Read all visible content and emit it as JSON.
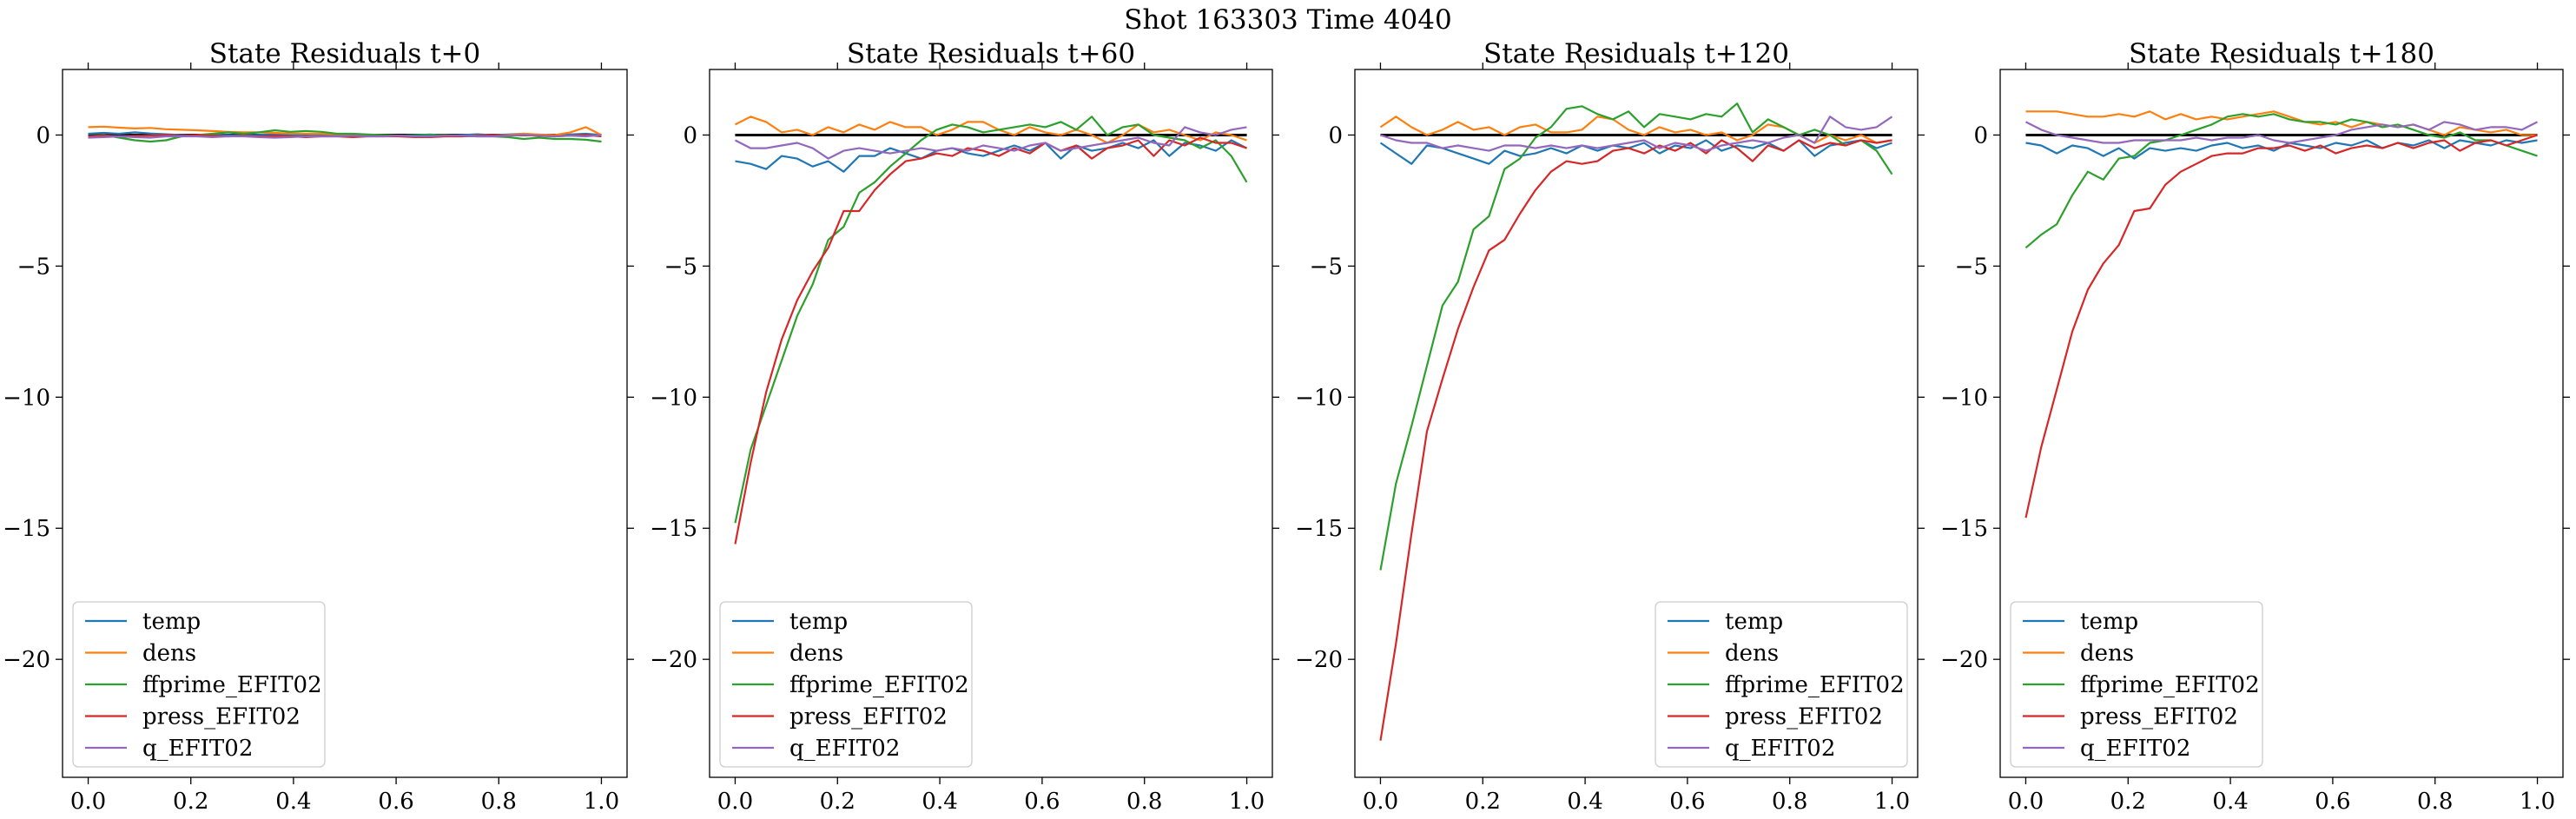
{
  "figure": {
    "suptitle": "Shot 163303   Time 4040"
  },
  "chart_data": [
    {
      "type": "line",
      "title": "State Residuals t+0",
      "xlim": [
        -0.05,
        1.05
      ],
      "ylim": [
        -24.5,
        2.5
      ],
      "xticks": [
        "0.0",
        "0.2",
        "0.4",
        "0.6",
        "0.8",
        "1.0"
      ],
      "yticks": [
        "0",
        "−5",
        "−10",
        "−15",
        "−20"
      ],
      "legend_position": "lower-left",
      "colors": {
        "temp": "#1f77b4",
        "dens": "#ff7f0e",
        "ffprime_EFIT02": "#2ca02c",
        "press_EFIT02": "#d62728",
        "q_EFIT02": "#9467bd",
        "zero_line": "#000000"
      },
      "zero_line": 0,
      "x": [
        0.0,
        0.0303,
        0.0606,
        0.0909,
        0.1212,
        0.1515,
        0.1818,
        0.2121,
        0.2424,
        0.2727,
        0.303,
        0.3333,
        0.3636,
        0.3939,
        0.4242,
        0.4545,
        0.4848,
        0.5152,
        0.5455,
        0.5758,
        0.6061,
        0.6364,
        0.6667,
        0.697,
        0.7273,
        0.7576,
        0.7879,
        0.8182,
        0.8485,
        0.8788,
        0.9091,
        0.9394,
        0.9697,
        1.0
      ],
      "series": [
        {
          "name": "temp",
          "values": [
            0.05,
            0.08,
            0.05,
            0.1,
            0.06,
            0.03,
            0.0,
            -0.02,
            0.02,
            0.0,
            -0.02,
            0.01,
            0.03,
            0.0,
            -0.03,
            0.0,
            0.02,
            0.03,
            0.0,
            -0.02,
            -0.03,
            0.0,
            0.02,
            -0.02,
            0.0,
            0.03,
            0.0,
            0.02,
            0.05,
            0.0,
            -0.02,
            0.02,
            0.05,
            0.0
          ]
        },
        {
          "name": "dens",
          "values": [
            0.3,
            0.32,
            0.28,
            0.25,
            0.27,
            0.22,
            0.2,
            0.18,
            0.15,
            0.12,
            0.1,
            0.1,
            0.08,
            0.06,
            0.05,
            0.05,
            0.03,
            0.02,
            0.0,
            -0.02,
            -0.05,
            -0.05,
            -0.03,
            -0.05,
            -0.05,
            -0.02,
            -0.02,
            0.0,
            0.05,
            0.02,
            0.0,
            0.1,
            0.3,
            0.0
          ]
        },
        {
          "name": "ffprime_EFIT02",
          "values": [
            -0.05,
            0.0,
            -0.1,
            -0.2,
            -0.25,
            -0.2,
            -0.05,
            0.0,
            0.05,
            0.1,
            0.05,
            0.1,
            0.18,
            0.12,
            0.15,
            0.12,
            0.05,
            0.05,
            0.02,
            0.0,
            -0.02,
            -0.02,
            0.0,
            0.0,
            -0.03,
            -0.05,
            -0.05,
            -0.08,
            -0.15,
            -0.1,
            -0.15,
            -0.15,
            -0.18,
            -0.25
          ]
        },
        {
          "name": "press_EFIT02",
          "values": [
            -0.05,
            -0.02,
            -0.05,
            -0.03,
            -0.02,
            0.0,
            -0.03,
            0.0,
            -0.02,
            -0.05,
            -0.03,
            -0.05,
            -0.03,
            -0.05,
            -0.08,
            -0.05,
            -0.05,
            -0.08,
            -0.05,
            -0.05,
            -0.05,
            -0.08,
            -0.08,
            -0.05,
            -0.05,
            -0.03,
            0.0,
            -0.02,
            0.0,
            -0.03,
            -0.05,
            -0.02,
            0.0,
            -0.05
          ]
        },
        {
          "name": "q_EFIT02",
          "values": [
            -0.1,
            -0.08,
            -0.05,
            -0.08,
            -0.1,
            -0.05,
            -0.05,
            -0.05,
            -0.08,
            -0.05,
            -0.05,
            -0.08,
            -0.1,
            -0.08,
            -0.05,
            -0.05,
            -0.05,
            -0.02,
            -0.05,
            -0.05,
            -0.02,
            -0.05,
            -0.05,
            -0.02,
            -0.02,
            -0.05,
            -0.05,
            -0.02,
            0.0,
            -0.02,
            -0.05,
            -0.02,
            -0.05,
            0.0
          ]
        }
      ]
    },
    {
      "type": "line",
      "title": "State Residuals t+60",
      "xlim": [
        -0.05,
        1.05
      ],
      "ylim": [
        -24.5,
        2.5
      ],
      "xticks": [
        "0.0",
        "0.2",
        "0.4",
        "0.6",
        "0.8",
        "1.0"
      ],
      "yticks": [
        "0",
        "−5",
        "−10",
        "−15",
        "−20"
      ],
      "legend_position": "lower-left",
      "colors": {
        "temp": "#1f77b4",
        "dens": "#ff7f0e",
        "ffprime_EFIT02": "#2ca02c",
        "press_EFIT02": "#d62728",
        "q_EFIT02": "#9467bd",
        "zero_line": "#000000"
      },
      "zero_line": 0,
      "x": [
        0.0,
        0.0303,
        0.0606,
        0.0909,
        0.1212,
        0.1515,
        0.1818,
        0.2121,
        0.2424,
        0.2727,
        0.303,
        0.3333,
        0.3636,
        0.3939,
        0.4242,
        0.4545,
        0.4848,
        0.5152,
        0.5455,
        0.5758,
        0.6061,
        0.6364,
        0.6667,
        0.697,
        0.7273,
        0.7576,
        0.7879,
        0.8182,
        0.8485,
        0.8788,
        0.9091,
        0.9394,
        0.9697,
        1.0
      ],
      "series": [
        {
          "name": "temp",
          "values": [
            -1.0,
            -1.1,
            -1.3,
            -0.8,
            -0.9,
            -1.2,
            -1.0,
            -1.4,
            -0.8,
            -0.8,
            -0.5,
            -0.7,
            -0.9,
            -0.6,
            -0.5,
            -0.7,
            -0.8,
            -0.6,
            -0.4,
            -0.6,
            -0.3,
            -0.9,
            -0.4,
            -0.6,
            -0.5,
            -0.3,
            -0.5,
            -0.2,
            -0.8,
            -0.3,
            -0.4,
            -0.6,
            -0.2,
            -0.5
          ]
        },
        {
          "name": "dens",
          "values": [
            0.4,
            0.7,
            0.5,
            0.1,
            0.2,
            0.0,
            0.3,
            0.1,
            0.4,
            0.2,
            0.5,
            0.3,
            0.3,
            0.0,
            0.2,
            0.5,
            0.5,
            0.2,
            0.0,
            0.3,
            0.1,
            0.0,
            0.2,
            0.0,
            -0.3,
            0.0,
            0.4,
            0.1,
            0.2,
            0.0,
            -0.2,
            0.1,
            0.0,
            -0.2
          ]
        },
        {
          "name": "ffprime_EFIT02",
          "values": [
            -14.8,
            -12.0,
            -10.3,
            -8.6,
            -6.9,
            -5.7,
            -4.0,
            -3.5,
            -2.2,
            -1.8,
            -1.2,
            -0.7,
            -0.2,
            0.2,
            0.4,
            0.3,
            0.1,
            0.2,
            0.3,
            0.4,
            0.3,
            0.5,
            0.2,
            0.7,
            0.0,
            0.3,
            0.4,
            0.0,
            -0.1,
            -0.2,
            -0.5,
            -0.2,
            -0.8,
            -1.8
          ]
        },
        {
          "name": "press_EFIT02",
          "values": [
            -15.6,
            -12.5,
            -9.8,
            -7.8,
            -6.3,
            -5.2,
            -4.3,
            -2.9,
            -2.9,
            -2.1,
            -1.5,
            -1.0,
            -0.9,
            -0.7,
            -0.8,
            -0.5,
            -0.6,
            -0.8,
            -0.5,
            -0.7,
            -0.3,
            -0.6,
            -0.4,
            -0.9,
            -0.5,
            -0.4,
            -0.2,
            -0.8,
            -0.2,
            -0.4,
            -0.1,
            -0.3,
            -0.3,
            -0.5
          ]
        },
        {
          "name": "q_EFIT02",
          "values": [
            -0.2,
            -0.5,
            -0.5,
            -0.4,
            -0.3,
            -0.5,
            -0.9,
            -0.6,
            -0.5,
            -0.6,
            -0.7,
            -0.6,
            -0.5,
            -0.6,
            -0.5,
            -0.6,
            -0.4,
            -0.5,
            -0.6,
            -0.4,
            -0.3,
            -0.6,
            -0.5,
            -0.4,
            -0.3,
            -0.2,
            -0.1,
            -0.3,
            -0.4,
            0.3,
            0.1,
            0.0,
            0.2,
            0.3
          ]
        }
      ]
    },
    {
      "type": "line",
      "title": "State Residuals t+120",
      "xlim": [
        -0.05,
        1.05
      ],
      "ylim": [
        -24.5,
        2.5
      ],
      "xticks": [
        "0.0",
        "0.2",
        "0.4",
        "0.6",
        "0.8",
        "1.0"
      ],
      "yticks": [
        "0",
        "−5",
        "−10",
        "−15",
        "−20"
      ],
      "legend_position": "lower-right",
      "colors": {
        "temp": "#1f77b4",
        "dens": "#ff7f0e",
        "ffprime_EFIT02": "#2ca02c",
        "press_EFIT02": "#d62728",
        "q_EFIT02": "#9467bd",
        "zero_line": "#000000"
      },
      "zero_line": 0,
      "x": [
        0.0,
        0.0303,
        0.0606,
        0.0909,
        0.1212,
        0.1515,
        0.1818,
        0.2121,
        0.2424,
        0.2727,
        0.303,
        0.3333,
        0.3636,
        0.3939,
        0.4242,
        0.4545,
        0.4848,
        0.5152,
        0.5455,
        0.5758,
        0.6061,
        0.6364,
        0.6667,
        0.697,
        0.7273,
        0.7576,
        0.7879,
        0.8182,
        0.8485,
        0.8788,
        0.9091,
        0.9394,
        0.9697,
        1.0
      ],
      "series": [
        {
          "name": "temp",
          "values": [
            -0.3,
            -0.7,
            -1.1,
            -0.4,
            -0.5,
            -0.7,
            -0.9,
            -1.1,
            -0.6,
            -0.8,
            -0.7,
            -0.5,
            -0.7,
            -0.4,
            -0.6,
            -0.4,
            -0.5,
            -0.3,
            -0.7,
            -0.4,
            -0.5,
            -0.2,
            -0.6,
            -0.4,
            -0.5,
            -0.3,
            -0.6,
            -0.2,
            -0.8,
            -0.4,
            -0.3,
            -0.2,
            -0.5,
            -0.3
          ]
        },
        {
          "name": "dens",
          "values": [
            0.3,
            0.7,
            0.3,
            0.0,
            0.2,
            0.5,
            0.2,
            0.3,
            0.0,
            0.3,
            0.4,
            0.1,
            0.1,
            0.2,
            0.7,
            0.6,
            0.2,
            0.0,
            0.3,
            0.1,
            0.2,
            0.0,
            0.1,
            -0.2,
            0.0,
            0.4,
            0.3,
            0.0,
            -0.3,
            0.0,
            -0.2,
            0.0,
            -0.3,
            -0.2
          ]
        },
        {
          "name": "ffprime_EFIT02",
          "values": [
            -16.6,
            -13.3,
            -11.1,
            -8.8,
            -6.5,
            -5.6,
            -3.6,
            -3.1,
            -1.3,
            -0.9,
            -0.1,
            0.3,
            1.0,
            1.1,
            0.8,
            0.6,
            0.9,
            0.3,
            0.8,
            0.7,
            0.6,
            0.8,
            0.7,
            1.2,
            0.1,
            0.6,
            0.3,
            0.0,
            0.2,
            0.0,
            -0.4,
            -0.2,
            -0.6,
            -1.5
          ]
        },
        {
          "name": "press_EFIT02",
          "values": [
            -23.1,
            -19.4,
            -15.2,
            -11.3,
            -9.3,
            -7.4,
            -5.8,
            -4.4,
            -4.0,
            -3.0,
            -2.1,
            -1.4,
            -1.0,
            -1.1,
            -1.0,
            -0.6,
            -0.5,
            -0.7,
            -0.4,
            -0.6,
            -0.3,
            -0.7,
            -0.2,
            -0.5,
            -1.0,
            -0.4,
            -0.6,
            -0.2,
            -0.5,
            -0.3,
            -0.4,
            -0.2,
            -0.3,
            -0.2
          ]
        },
        {
          "name": "q_EFIT02",
          "values": [
            0.0,
            -0.2,
            -0.3,
            -0.3,
            -0.5,
            -0.4,
            -0.5,
            -0.6,
            -0.4,
            -0.4,
            -0.5,
            -0.4,
            -0.5,
            -0.4,
            -0.5,
            -0.4,
            -0.3,
            -0.2,
            -0.5,
            -0.3,
            -0.4,
            -0.6,
            -0.4,
            -0.3,
            -0.2,
            -0.3,
            -0.1,
            0.0,
            -0.3,
            0.7,
            0.3,
            0.2,
            0.3,
            0.7
          ]
        }
      ]
    },
    {
      "type": "line",
      "title": "State Residuals t+180",
      "xlim": [
        -0.05,
        1.05
      ],
      "ylim": [
        -24.5,
        2.5
      ],
      "xticks": [
        "0.0",
        "0.2",
        "0.4",
        "0.6",
        "0.8",
        "1.0"
      ],
      "yticks": [
        "0",
        "−5",
        "−10",
        "−15",
        "−20"
      ],
      "legend_position": "lower-left",
      "colors": {
        "temp": "#1f77b4",
        "dens": "#ff7f0e",
        "ffprime_EFIT02": "#2ca02c",
        "press_EFIT02": "#d62728",
        "q_EFIT02": "#9467bd",
        "zero_line": "#000000"
      },
      "zero_line": 0,
      "x": [
        0.0,
        0.0303,
        0.0606,
        0.0909,
        0.1212,
        0.1515,
        0.1818,
        0.2121,
        0.2424,
        0.2727,
        0.303,
        0.3333,
        0.3636,
        0.3939,
        0.4242,
        0.4545,
        0.4848,
        0.5152,
        0.5455,
        0.5758,
        0.6061,
        0.6364,
        0.6667,
        0.697,
        0.7273,
        0.7576,
        0.7879,
        0.8182,
        0.8485,
        0.8788,
        0.9091,
        0.9394,
        0.9697,
        1.0
      ],
      "series": [
        {
          "name": "temp",
          "values": [
            -0.3,
            -0.4,
            -0.7,
            -0.4,
            -0.5,
            -0.8,
            -0.5,
            -0.9,
            -0.5,
            -0.6,
            -0.5,
            -0.6,
            -0.4,
            -0.3,
            -0.5,
            -0.4,
            -0.6,
            -0.3,
            -0.4,
            -0.5,
            -0.3,
            -0.4,
            -0.2,
            -0.5,
            -0.3,
            -0.4,
            -0.2,
            -0.5,
            -0.2,
            -0.3,
            -0.4,
            -0.2,
            -0.3,
            -0.2
          ]
        },
        {
          "name": "dens",
          "values": [
            0.9,
            0.9,
            0.9,
            0.8,
            0.7,
            0.7,
            0.8,
            0.7,
            0.9,
            0.6,
            0.8,
            0.6,
            0.7,
            0.6,
            0.7,
            0.8,
            0.9,
            0.7,
            0.5,
            0.4,
            0.5,
            0.3,
            0.5,
            0.4,
            0.3,
            0.4,
            0.2,
            0.0,
            0.3,
            0.2,
            0.1,
            0.2,
            0.0,
            0.0
          ]
        },
        {
          "name": "ffprime_EFIT02",
          "values": [
            -4.3,
            -3.8,
            -3.4,
            -2.3,
            -1.4,
            -1.7,
            -0.9,
            -0.8,
            -0.3,
            -0.2,
            0.0,
            0.2,
            0.4,
            0.7,
            0.8,
            0.7,
            0.8,
            0.6,
            0.5,
            0.5,
            0.4,
            0.6,
            0.5,
            0.3,
            0.4,
            0.2,
            0.0,
            -0.1,
            0.1,
            -0.2,
            -0.2,
            -0.4,
            -0.6,
            -0.8
          ]
        },
        {
          "name": "press_EFIT02",
          "values": [
            -14.6,
            -11.9,
            -9.7,
            -7.5,
            -5.9,
            -4.9,
            -4.2,
            -2.9,
            -2.8,
            -1.9,
            -1.4,
            -1.1,
            -0.8,
            -0.7,
            -0.7,
            -0.5,
            -0.5,
            -0.4,
            -0.6,
            -0.4,
            -0.7,
            -0.5,
            -0.4,
            -0.5,
            -0.3,
            -0.5,
            -0.3,
            -0.2,
            -0.6,
            -0.3,
            -0.2,
            -0.4,
            -0.2,
            0.0
          ]
        },
        {
          "name": "q_EFIT02",
          "values": [
            0.5,
            0.2,
            0.0,
            -0.1,
            -0.2,
            -0.3,
            -0.3,
            -0.2,
            -0.2,
            -0.2,
            -0.2,
            -0.1,
            -0.2,
            -0.1,
            -0.1,
            0.0,
            -0.2,
            -0.3,
            -0.2,
            -0.1,
            0.0,
            0.2,
            0.3,
            0.4,
            0.3,
            0.4,
            0.2,
            0.5,
            0.4,
            0.2,
            0.3,
            0.3,
            0.2,
            0.5
          ]
        }
      ]
    }
  ]
}
